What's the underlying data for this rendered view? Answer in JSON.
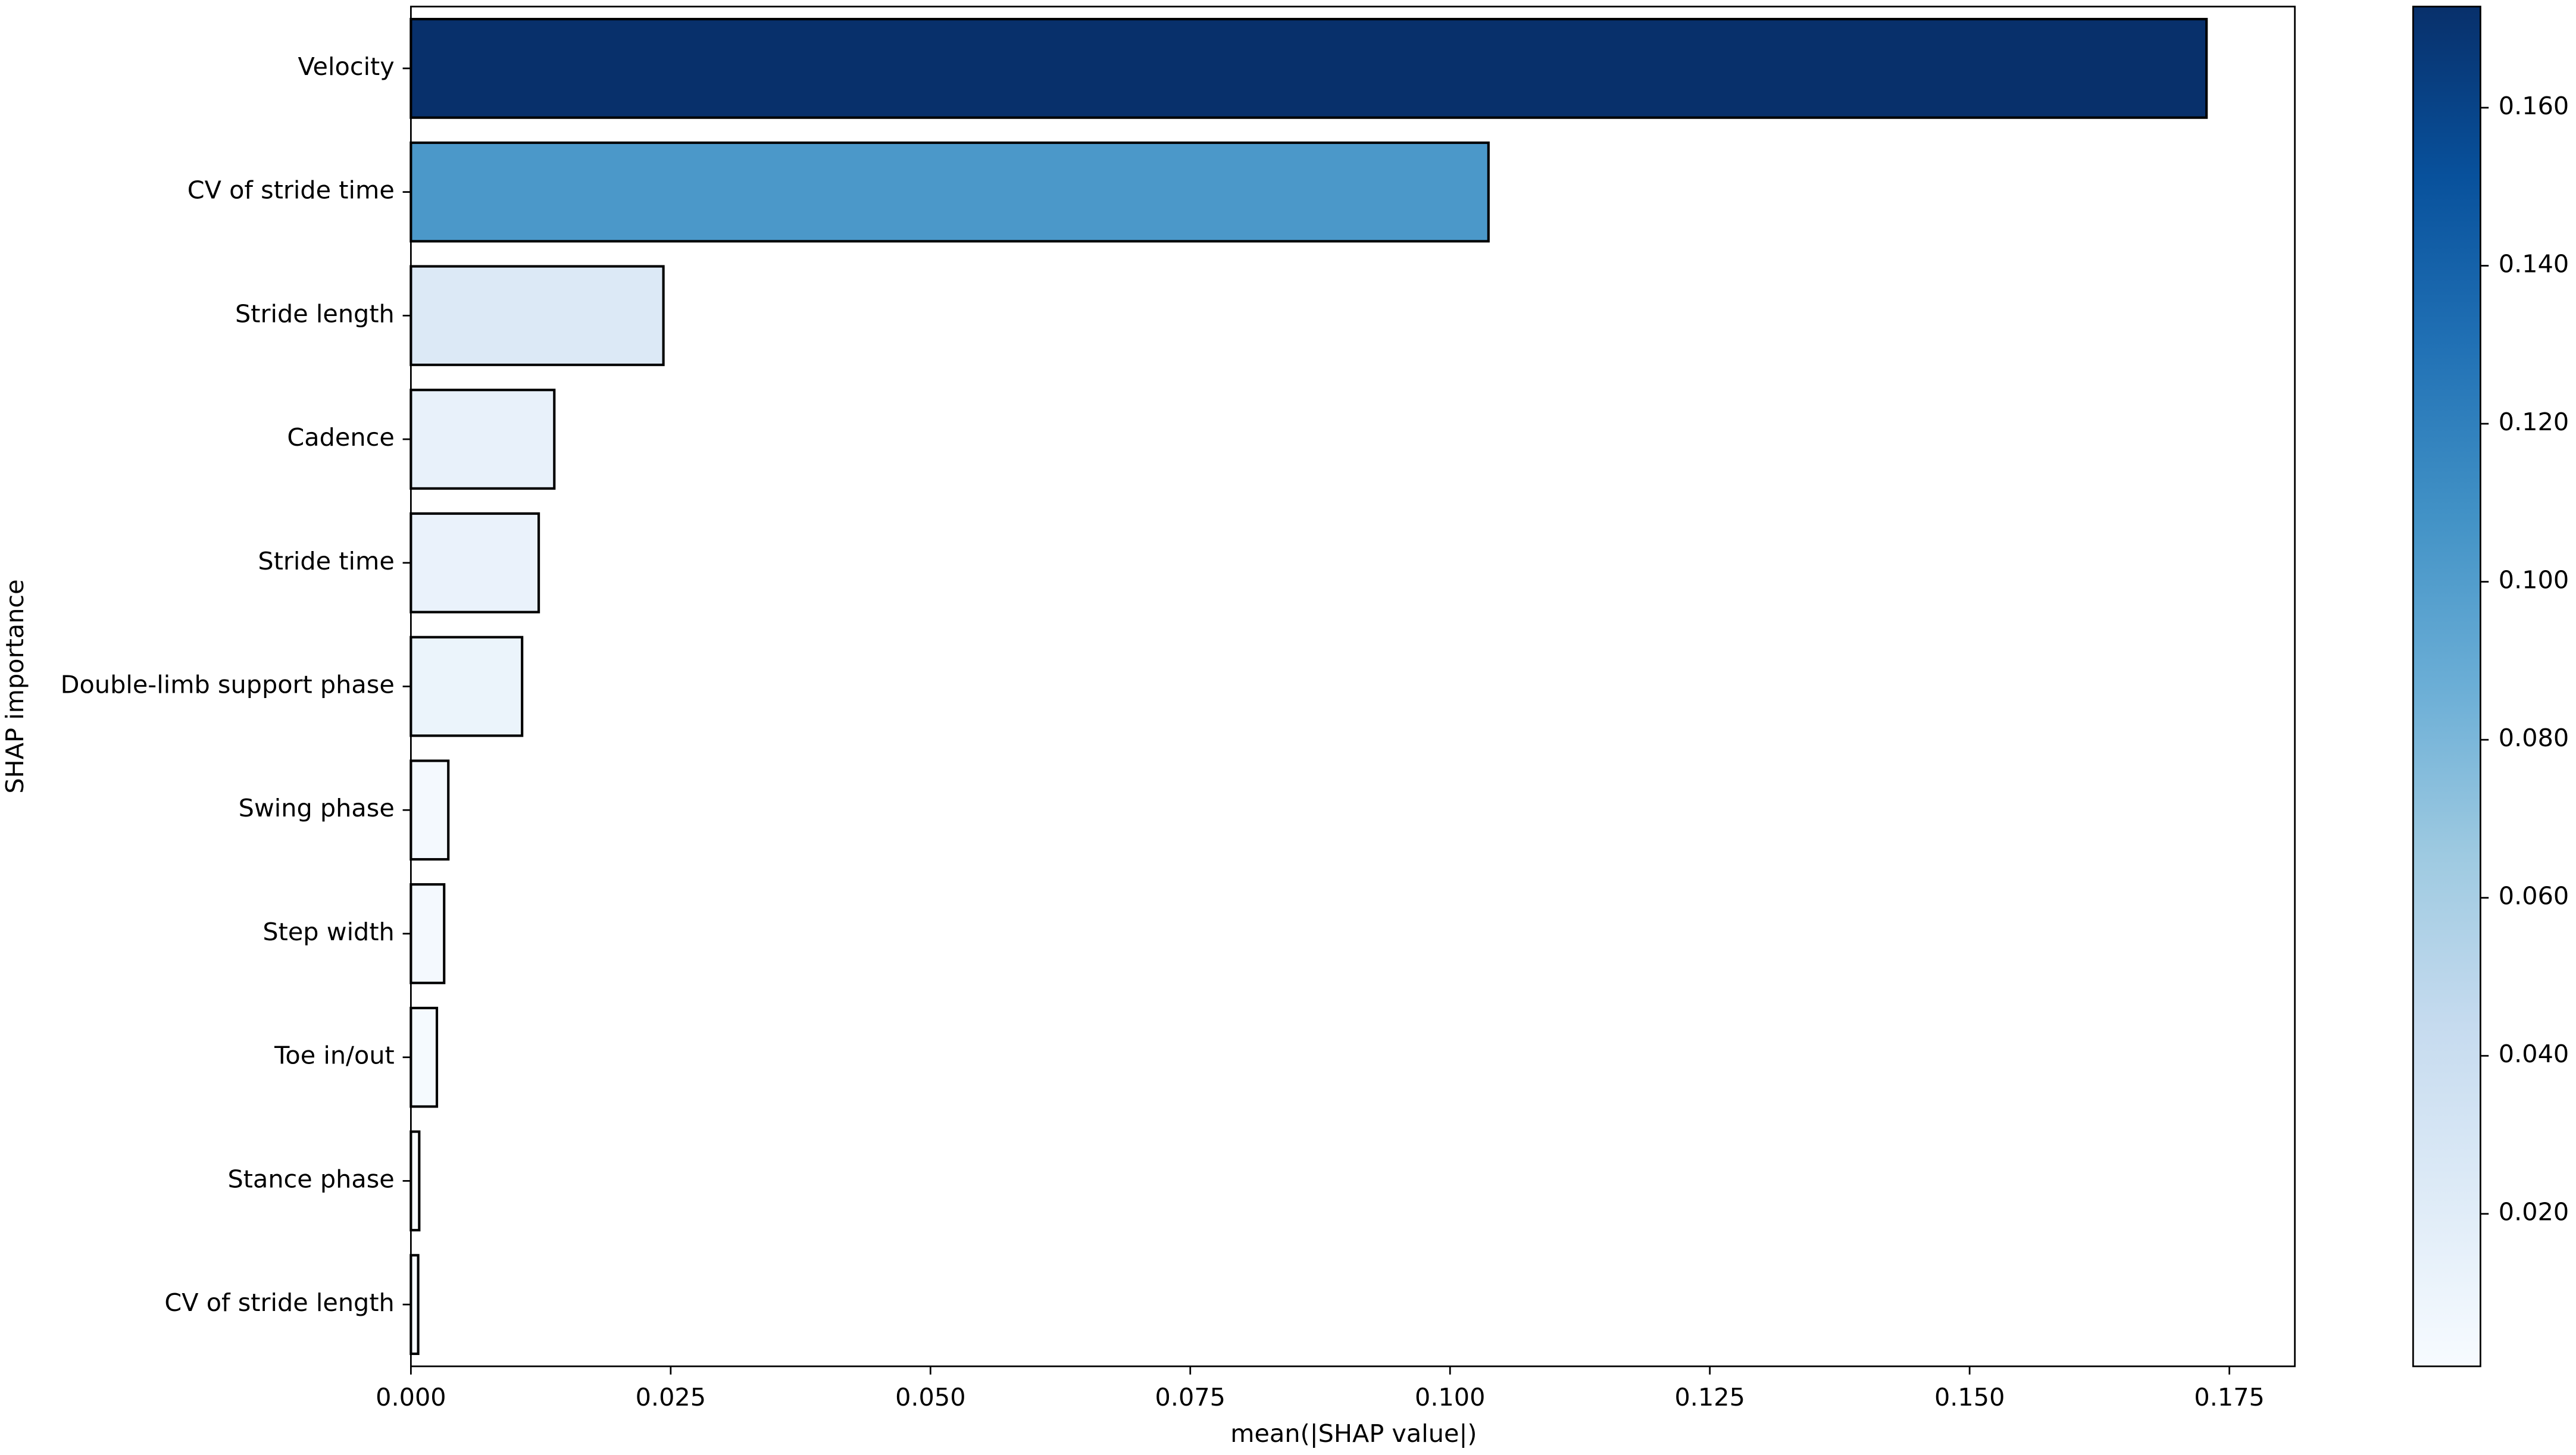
{
  "chart_data": {
    "type": "barh",
    "xlabel": "mean(|SHAP value|)",
    "ylabel": "SHAP importance",
    "categories": [
      "Velocity",
      "CV of stride time",
      "Stride length",
      "Cadence",
      "Stride time",
      "Double-limb support phase",
      "Swing phase",
      "Step width",
      "Toe in/out",
      "Stance phase",
      "CV of stride length"
    ],
    "values": [
      0.1728,
      0.1037,
      0.0243,
      0.0138,
      0.0123,
      0.0107,
      0.0036,
      0.0032,
      0.0025,
      0.0008,
      0.0007
    ],
    "colormap": "Blues",
    "edgecolor": "#000000",
    "xlim": [
      0,
      0.1813
    ],
    "xticks": [
      {
        "value": 0,
        "label": "0.000"
      },
      {
        "value": 0.025,
        "label": "0.025"
      },
      {
        "value": 0.05,
        "label": "0.050"
      },
      {
        "value": 0.075,
        "label": "0.075"
      },
      {
        "value": 0.1,
        "label": "0.100"
      },
      {
        "value": 0.125,
        "label": "0.125"
      },
      {
        "value": 0.15,
        "label": "0.150"
      },
      {
        "value": 0.175,
        "label": "0.175"
      }
    ],
    "colorbar": {
      "lim": [
        0.0007,
        0.1728
      ],
      "ticks": [
        {
          "value": 0.02,
          "label": "0.020"
        },
        {
          "value": 0.04,
          "label": "0.040"
        },
        {
          "value": 0.06,
          "label": "0.060"
        },
        {
          "value": 0.08,
          "label": "0.080"
        },
        {
          "value": 0.1,
          "label": "0.100"
        },
        {
          "value": 0.12,
          "label": "0.120"
        },
        {
          "value": 0.14,
          "label": "0.140"
        },
        {
          "value": 0.16,
          "label": "0.160"
        }
      ]
    }
  }
}
